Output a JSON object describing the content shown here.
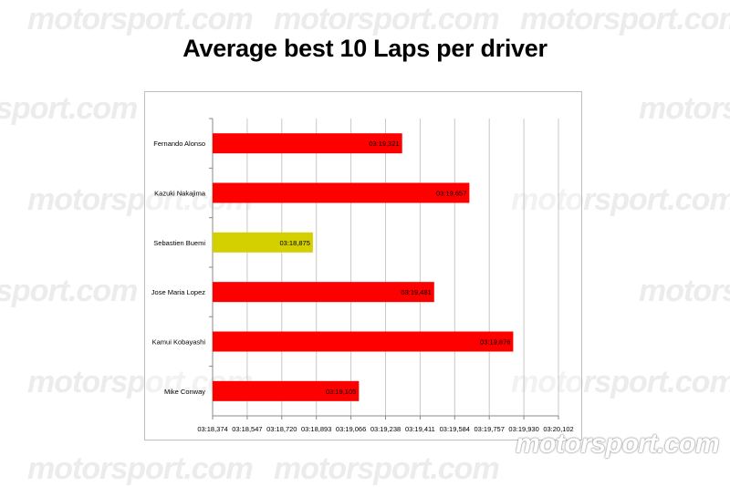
{
  "watermark": {
    "text": "motorsport.com",
    "brand": "motorsport",
    "domain": ".com",
    "partial_left": "sport.com",
    "partial_right": "motors"
  },
  "header": {
    "title": "Average best 10 Laps per driver"
  },
  "colors": {
    "bar_default": "#ff0000",
    "bar_highlight": "#d4d000",
    "grid": "#c8c8c8",
    "axis": "#888888"
  },
  "chart_data": {
    "type": "bar",
    "orientation": "horizontal",
    "title": "Average best 10 Laps per driver",
    "xlabel": "",
    "ylabel": "",
    "grid": true,
    "legend": "none",
    "categories": [
      "Fernando Alonso",
      "Kazuki Nakajima",
      "Sebastien Buemi",
      "Jose Maria Lopez",
      "Kamui Kobayashi",
      "Mike Conway"
    ],
    "values": [
      "03:19,321",
      "03:19,657",
      "03:18,875",
      "03:19,481",
      "03:19,876",
      "03:19,105"
    ],
    "values_seconds": [
      199.321,
      199.657,
      198.875,
      199.481,
      199.876,
      199.105
    ],
    "highlight_category": "Sebastien Buemi",
    "x_tick_labels": [
      "03:18,374",
      "03:18,547",
      "03:18,720",
      "03:18,893",
      "03:19,066",
      "03:19,238",
      "03:19,411",
      "03:19,584",
      "03:19,757",
      "03:19,930",
      "03:20,102"
    ],
    "xlim_seconds": [
      198.374,
      200.102
    ],
    "xlim": [
      "03:18,374",
      "03:20,102"
    ]
  }
}
